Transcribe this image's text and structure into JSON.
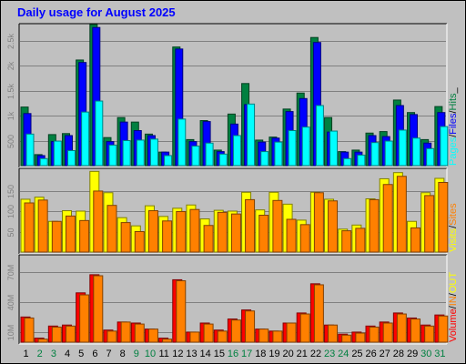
{
  "chart_data": {
    "type": "bar",
    "title": "Daily usage for August 2025",
    "grid": true,
    "x": [
      "1",
      "2",
      "3",
      "4",
      "5",
      "6",
      "7",
      "8",
      "9",
      "10",
      "11",
      "12",
      "13",
      "14",
      "15",
      "16",
      "17",
      "18",
      "19",
      "20",
      "21",
      "22",
      "23",
      "24",
      "25",
      "26",
      "27",
      "28",
      "29",
      "30",
      "31"
    ],
    "weekend_days": [
      "2",
      "3",
      "9",
      "10",
      "16",
      "17",
      "23",
      "24",
      "30",
      "31"
    ],
    "colors": {
      "pages": "#00ffff",
      "files": "#0000ff",
      "hits": "#008040",
      "visits": "#ffff00",
      "sites": "#ff8000",
      "volume": "#ff0000",
      "in": "#ff8000",
      "out": "#ffff00",
      "weekend": "#008040",
      "weekday": "#000000"
    },
    "panels": [
      {
        "name": "top",
        "ylim": [
          0,
          2800
        ],
        "ytick_labels": [
          "2.5k",
          "2k",
          "1.5k",
          "1k",
          "500"
        ],
        "ytick_values": [
          2500,
          2000,
          1500,
          1000,
          500
        ],
        "legend": [
          {
            "label": "Pages",
            "color": "#00ffff"
          },
          {
            "label": "/",
            "color": "#000000"
          },
          {
            "label": "Files",
            "color": "#0000ff"
          },
          {
            "label": "/",
            "color": "#000000"
          },
          {
            "label": "Hits",
            "color": "#008040"
          },
          {
            "label": "_",
            "color": "#000000"
          }
        ],
        "series": [
          {
            "name": "Hits",
            "color": "#008040",
            "values": [
              1170,
              220,
              620,
              640,
              2110,
              2820,
              560,
              960,
              870,
              630,
              270,
              2370,
              520,
              900,
              310,
              1030,
              1640,
              510,
              570,
              1130,
              1450,
              2560,
              960,
              280,
              310,
              650,
              680,
              1310,
              1060,
              520,
              1180
            ]
          },
          {
            "name": "Files",
            "color": "#0000ff",
            "values": [
              1040,
              200,
              480,
              600,
              2060,
              2760,
              480,
              870,
              700,
              600,
              270,
              2330,
              480,
              880,
              280,
              830,
              1220,
              470,
              550,
              1080,
              1340,
              2460,
              670,
              270,
              270,
              600,
              580,
              1200,
              1020,
              450,
              1060
            ]
          },
          {
            "name": "Pages",
            "color": "#00ffff",
            "values": [
              630,
              140,
              490,
              300,
              1070,
              1290,
              410,
              500,
              510,
              530,
              200,
              930,
              390,
              450,
              230,
              600,
              1230,
              280,
              470,
              700,
              770,
              1200,
              690,
              140,
              210,
              460,
              490,
              710,
              550,
              340,
              780
            ]
          }
        ]
      },
      {
        "name": "middle",
        "ylim": [
          0,
          200
        ],
        "ytick_labels": [
          "150",
          "100",
          "50"
        ],
        "ytick_values": [
          150,
          100,
          50
        ],
        "legend": [
          {
            "label": "Visits",
            "color": "#ffff00"
          },
          {
            "label": "/",
            "color": "#000000"
          },
          {
            "label": "Sites",
            "color": "#ff8000"
          }
        ],
        "series": [
          {
            "name": "Visits",
            "color": "#ffff00",
            "values": [
              129,
              134,
              75,
              101,
              100,
              197,
              145,
              84,
              64,
              113,
              87,
              107,
              115,
              81,
              102,
              100,
              146,
              103,
              146,
              117,
              78,
              146,
              129,
              56,
              66,
              130,
              179,
              194,
              75,
              145,
              180
            ]
          },
          {
            "name": "Sites",
            "color": "#ff8000",
            "values": [
              120,
              127,
              75,
              88,
              77,
              149,
              114,
              72,
              50,
              101,
              76,
              99,
              104,
              65,
              97,
              93,
              128,
              90,
              126,
              80,
              67,
              145,
              125,
              52,
              58,
              128,
              165,
              185,
              59,
              138,
              170
            ]
          }
        ]
      },
      {
        "name": "bottom",
        "ylim": [
          0,
          85
        ],
        "ytick_labels": [
          "70M",
          "40M",
          "10M"
        ],
        "ytick_values": [
          70,
          40,
          10
        ],
        "legend": [
          {
            "label": "Volume",
            "color": "#ff0000"
          },
          {
            "label": "/",
            "color": "#000000"
          },
          {
            "label": "IN",
            "color": "#ff8000"
          },
          {
            "label": "/",
            "color": "#000000"
          },
          {
            "label": "OUT",
            "color": "#ffff00"
          }
        ],
        "series": [
          {
            "name": "Volume",
            "color": "#ff0000",
            "values": [
              25,
              4,
              16,
              17,
              49,
              67,
              12,
              20,
              19,
              13,
              4,
              62,
              10,
              19,
              12,
              23,
              32,
              13,
              11,
              19,
              29,
              58,
              17,
              8,
              10,
              16,
              20,
              29,
              24,
              17,
              27
            ]
          },
          {
            "name": "IN",
            "color": "#ff8000",
            "values": [
              24,
              3,
              15,
              16,
              47,
              66,
              11,
              20,
              18,
              13,
              3,
              61,
              10,
              18,
              11,
              22,
              31,
              13,
              11,
              19,
              28,
              57,
              17,
              7,
              9,
              15,
              19,
              28,
              23,
              16,
              26
            ]
          }
        ]
      }
    ]
  }
}
